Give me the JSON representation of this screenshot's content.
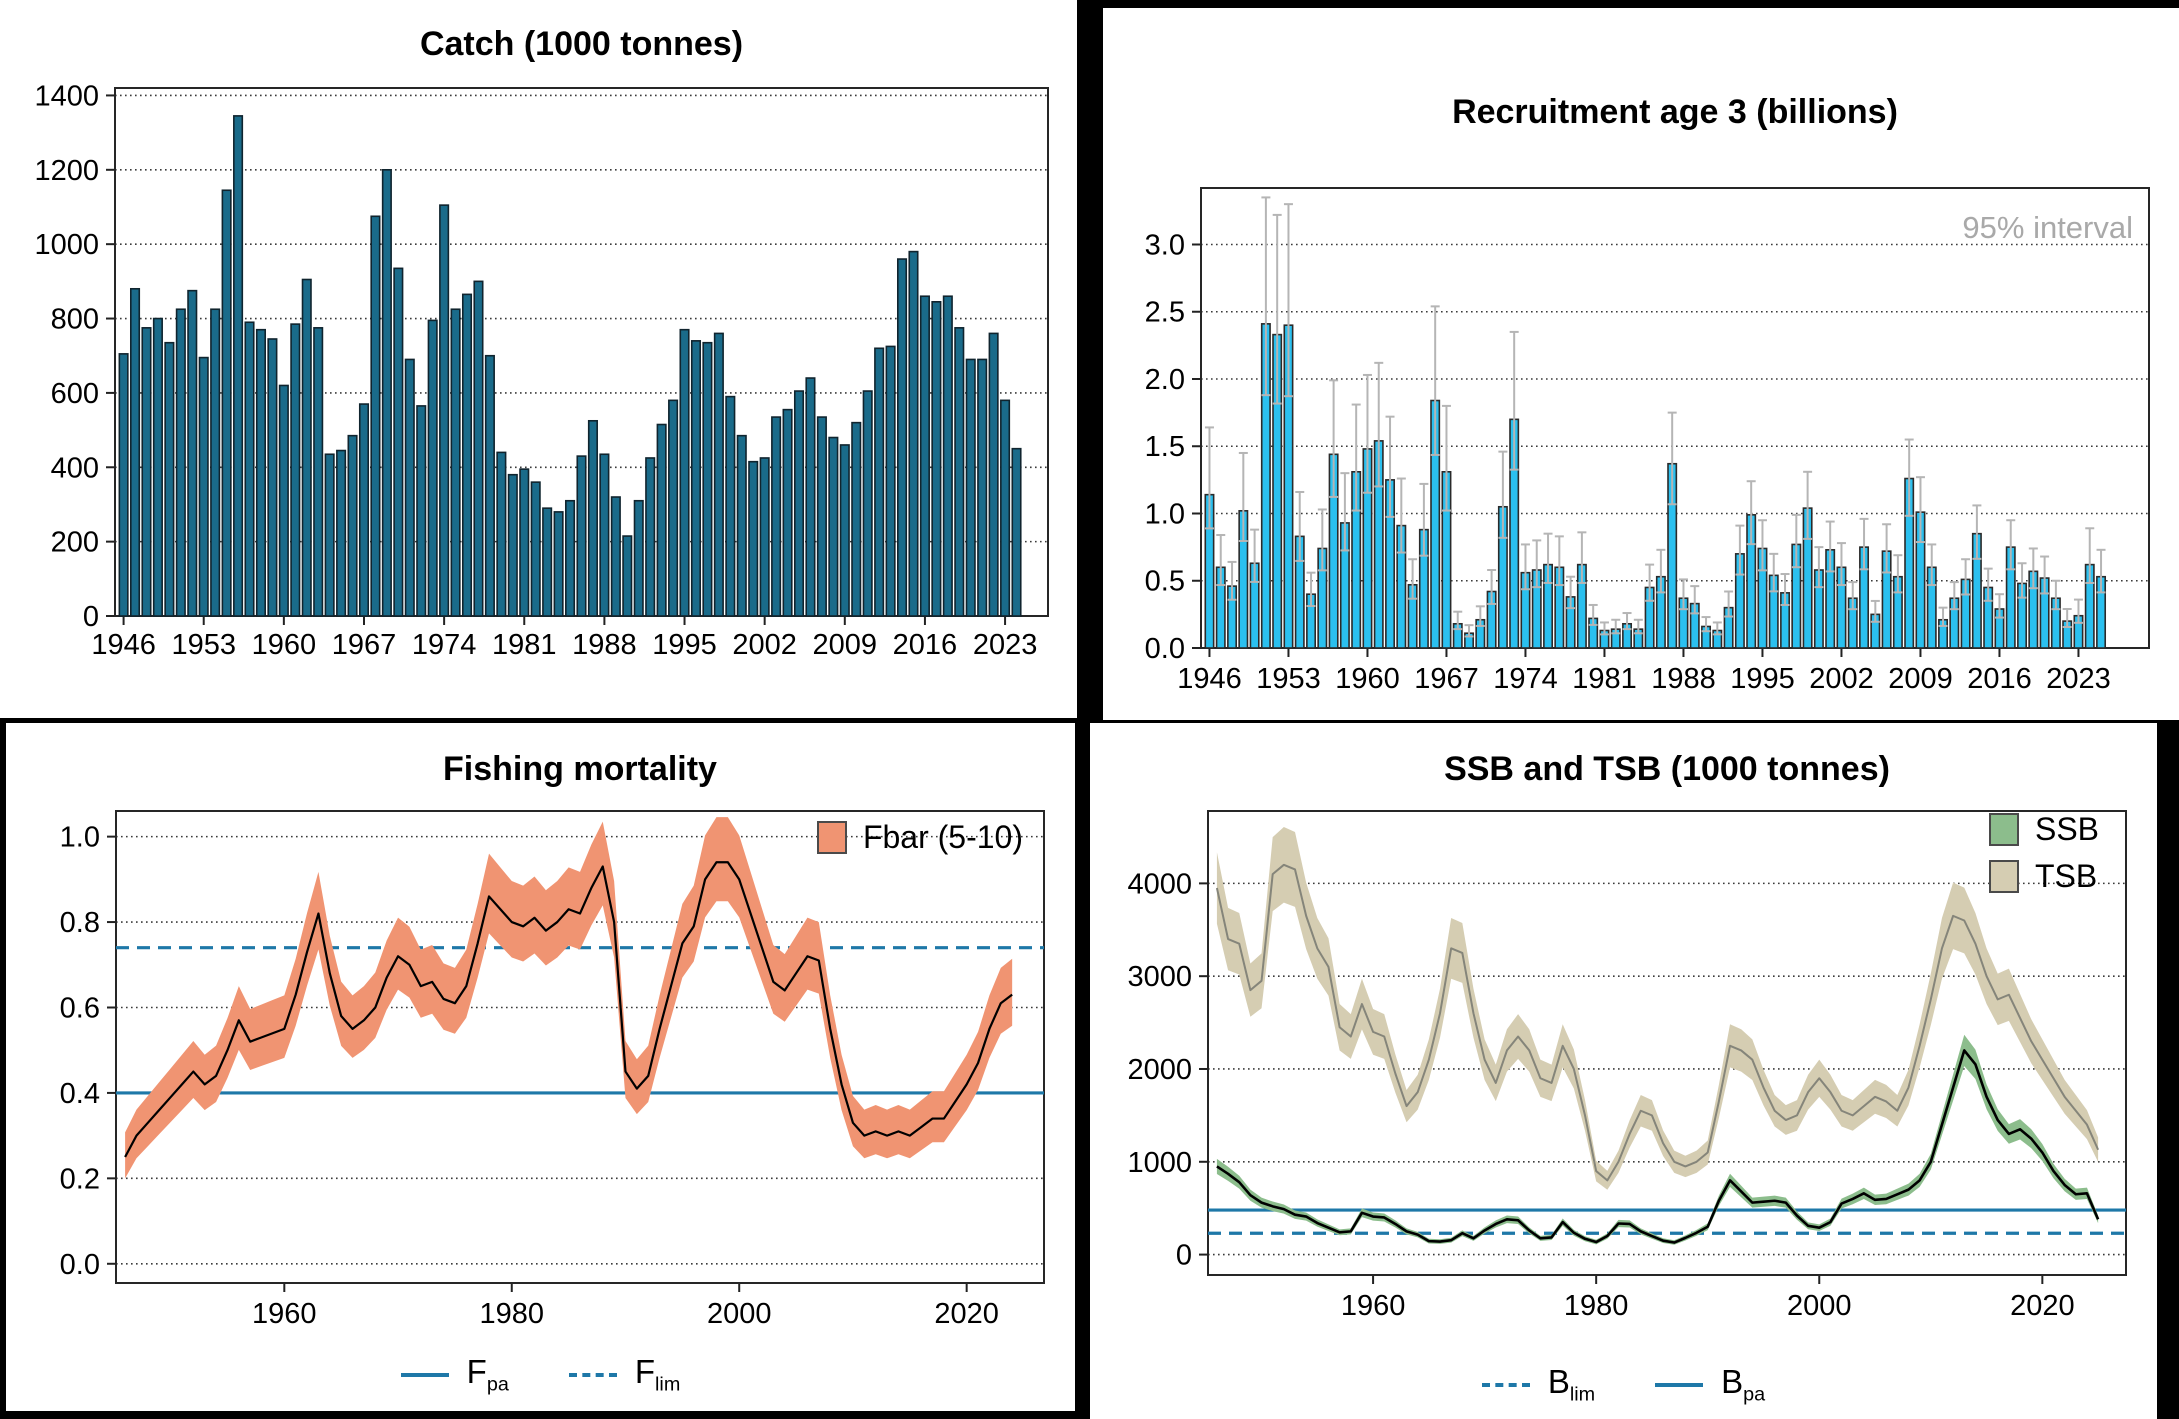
{
  "panels": {
    "catch": {
      "title": "Catch (1000 tonnes)"
    },
    "recruitment": {
      "title": "Recruitment age 3 (billions)",
      "interval_label": "95% interval"
    },
    "fishing_mortality": {
      "title": "Fishing mortality",
      "legend_label": "Fbar (5-10)",
      "ref_legend": {
        "fpa": {
          "main": "F",
          "sub": "pa"
        },
        "flim": {
          "main": "F",
          "sub": "lim"
        }
      }
    },
    "biomass": {
      "title": "SSB and TSB (1000 tonnes)",
      "legend_ssb": "SSB",
      "legend_tsb": "TSB",
      "ref_legend": {
        "blim": {
          "main": "B",
          "sub": "lim"
        },
        "bpa": {
          "main": "B",
          "sub": "pa"
        }
      }
    }
  },
  "colors": {
    "catch_bar": "#1a6b8a",
    "catch_bar_stroke": "#10242e",
    "recruit_bar": "#2bc0ef",
    "recruit_bar_stroke": "#2a2a2a",
    "whisker": "#b5b5b5",
    "f_band": "#f09472",
    "f_line": "#000000",
    "ssb_band": "#8cbd8c",
    "ssb_line": "#000000",
    "tsb_band": "#d5cdb2",
    "tsb_line": "#85857a",
    "ref_blue": "#1e78a8",
    "grid": "#3a3a3a",
    "note_gray": "#a9a9a9"
  },
  "chart_data": [
    {
      "id": "catch",
      "type": "bar",
      "title": "Catch (1000 tonnes)",
      "start_year": 1946,
      "values": [
        705,
        880,
        775,
        800,
        735,
        825,
        875,
        695,
        825,
        1145,
        1345,
        790,
        770,
        745,
        620,
        785,
        905,
        775,
        435,
        445,
        485,
        570,
        1075,
        1200,
        935,
        690,
        565,
        795,
        1105,
        825,
        865,
        900,
        700,
        440,
        380,
        395,
        360,
        290,
        280,
        310,
        430,
        525,
        435,
        320,
        215,
        310,
        425,
        515,
        580,
        770,
        740,
        735,
        760,
        590,
        485,
        415,
        425,
        535,
        555,
        605,
        640,
        535,
        480,
        460,
        520,
        605,
        720,
        725,
        960,
        980,
        860,
        845,
        860,
        775,
        690,
        690,
        760,
        580,
        450
      ],
      "ylim": [
        0,
        1420
      ],
      "yticks": [
        [
          0,
          "0"
        ],
        [
          200,
          "200"
        ],
        [
          400,
          "400"
        ],
        [
          600,
          "600"
        ],
        [
          800,
          "800"
        ],
        [
          1000,
          "1000"
        ],
        [
          1200,
          "1200"
        ],
        [
          1400,
          "1400"
        ]
      ],
      "xticks": [
        [
          1946,
          "1946"
        ],
        [
          1953,
          "1953"
        ],
        [
          1960,
          "1960"
        ],
        [
          1967,
          "1967"
        ],
        [
          1974,
          "1974"
        ],
        [
          1981,
          "1981"
        ],
        [
          1988,
          "1988"
        ],
        [
          1995,
          "1995"
        ],
        [
          2002,
          "2002"
        ],
        [
          2009,
          "2009"
        ],
        [
          2016,
          "2016"
        ],
        [
          2023,
          "2023"
        ]
      ],
      "bar_color": "#1a6b8a",
      "bar_stroke": "#10242e",
      "grid": true
    },
    {
      "id": "recruitment",
      "type": "bar",
      "title": "Recruitment age 3 (billions)",
      "note": "95% interval",
      "start_year": 1946,
      "values": [
        1.14,
        0.6,
        0.46,
        1.02,
        0.63,
        2.41,
        2.33,
        2.4,
        0.83,
        0.4,
        0.74,
        1.44,
        0.93,
        1.31,
        1.48,
        1.54,
        1.25,
        0.91,
        0.47,
        0.88,
        1.84,
        1.31,
        0.18,
        0.11,
        0.21,
        0.42,
        1.05,
        1.7,
        0.56,
        0.58,
        0.62,
        0.6,
        0.38,
        0.62,
        0.22,
        0.13,
        0.14,
        0.18,
        0.14,
        0.45,
        0.53,
        1.37,
        0.37,
        0.33,
        0.16,
        0.13,
        0.3,
        0.7,
        0.99,
        0.74,
        0.54,
        0.41,
        0.77,
        1.04,
        0.58,
        0.73,
        0.6,
        0.37,
        0.75,
        0.25,
        0.72,
        0.53,
        1.26,
        1.01,
        0.6,
        0.21,
        0.37,
        0.51,
        0.85,
        0.45,
        0.29,
        0.75,
        0.48,
        0.57,
        0.52,
        0.37,
        0.2,
        0.24,
        0.62,
        0.53
      ],
      "ci_upper": [
        1.64,
        0.84,
        0.64,
        1.45,
        0.88,
        3.35,
        3.22,
        3.3,
        1.16,
        0.56,
        1.03,
        1.99,
        1.3,
        1.81,
        2.03,
        2.12,
        1.72,
        1.26,
        0.66,
        1.22,
        2.54,
        1.8,
        0.27,
        0.17,
        0.31,
        0.58,
        1.46,
        2.35,
        0.77,
        0.8,
        0.85,
        0.83,
        0.53,
        0.86,
        0.32,
        0.19,
        0.21,
        0.26,
        0.21,
        0.62,
        0.73,
        1.75,
        0.51,
        0.46,
        0.23,
        0.19,
        0.42,
        0.91,
        1.24,
        0.95,
        0.7,
        0.55,
        0.99,
        1.31,
        0.75,
        0.94,
        0.78,
        0.49,
        0.96,
        0.35,
        0.92,
        0.69,
        1.55,
        1.27,
        0.77,
        0.3,
        0.49,
        0.66,
        1.06,
        0.59,
        0.4,
        0.95,
        0.63,
        0.74,
        0.68,
        0.5,
        0.29,
        0.36,
        0.89,
        0.73
      ],
      "ci_lower_factor": 0.78,
      "ylim": [
        0,
        3.42
      ],
      "yticks": [
        [
          0,
          "0.0"
        ],
        [
          0.5,
          "0.5"
        ],
        [
          1.0,
          "1.0"
        ],
        [
          1.5,
          "1.5"
        ],
        [
          2.0,
          "2.0"
        ],
        [
          2.5,
          "2.5"
        ],
        [
          3.0,
          "3.0"
        ]
      ],
      "xticks": [
        [
          1946,
          "1946"
        ],
        [
          1953,
          "1953"
        ],
        [
          1960,
          "1960"
        ],
        [
          1967,
          "1967"
        ],
        [
          1974,
          "1974"
        ],
        [
          1981,
          "1981"
        ],
        [
          1988,
          "1988"
        ],
        [
          1995,
          "1995"
        ],
        [
          2002,
          "2002"
        ],
        [
          2009,
          "2009"
        ],
        [
          2016,
          "2016"
        ],
        [
          2023,
          "2023"
        ]
      ],
      "bar_color": "#2bc0ef",
      "bar_stroke": "#2a2a2a",
      "whisker_color": "#b5b5b5",
      "grid": true
    },
    {
      "id": "fbar",
      "type": "band-line",
      "title": "Fishing mortality",
      "legend": "Fbar (5-10)",
      "xlim": [
        1945.2,
        2026.8
      ],
      "ylim": [
        -0.045,
        1.06
      ],
      "yticks": [
        [
          0,
          "0.0"
        ],
        [
          0.2,
          "0.2"
        ],
        [
          0.4,
          "0.4"
        ],
        [
          0.6,
          "0.6"
        ],
        [
          0.8,
          "0.8"
        ],
        [
          1.0,
          "1.0"
        ]
      ],
      "xticks": [
        [
          1960,
          "1960"
        ],
        [
          1980,
          "1980"
        ],
        [
          2000,
          "2000"
        ],
        [
          2020,
          "2020"
        ]
      ],
      "series": [
        {
          "name": "Fbar (5-10)",
          "start_year": 1946,
          "values": [
            0.25,
            0.3,
            0.33,
            0.36,
            0.39,
            0.42,
            0.45,
            0.42,
            0.44,
            0.5,
            0.57,
            0.52,
            0.53,
            0.54,
            0.55,
            0.63,
            0.73,
            0.82,
            0.68,
            0.58,
            0.55,
            0.57,
            0.6,
            0.67,
            0.72,
            0.7,
            0.65,
            0.66,
            0.62,
            0.61,
            0.65,
            0.75,
            0.86,
            0.83,
            0.8,
            0.79,
            0.81,
            0.78,
            0.8,
            0.83,
            0.82,
            0.88,
            0.93,
            0.8,
            0.45,
            0.41,
            0.44,
            0.55,
            0.65,
            0.75,
            0.79,
            0.9,
            0.94,
            0.94,
            0.9,
            0.82,
            0.74,
            0.66,
            0.64,
            0.68,
            0.72,
            0.71,
            0.55,
            0.42,
            0.33,
            0.3,
            0.31,
            0.3,
            0.31,
            0.3,
            0.32,
            0.34,
            0.34,
            0.38,
            0.42,
            0.47,
            0.55,
            0.61,
            0.63
          ],
          "band": {
            "lower_abs": 0.035,
            "lower_rel": 0.06,
            "upper_abs": 0.04,
            "upper_rel": 0.07
          },
          "band_color": "#f09472",
          "line_color": "#000000",
          "line_width": 2.2
        }
      ],
      "ref_lines": [
        {
          "name": "F_pa",
          "value": 0.4,
          "style": "solid"
        },
        {
          "name": "F_lim",
          "value": 0.74,
          "style": "dashed"
        }
      ]
    },
    {
      "id": "biomass",
      "type": "band-line",
      "title": "SSB and TSB (1000 tonnes)",
      "xlim": [
        1945.2,
        2027.5
      ],
      "ylim": [
        -220,
        4780
      ],
      "yticks": [
        [
          0,
          "0"
        ],
        [
          1000,
          "1000"
        ],
        [
          2000,
          "2000"
        ],
        [
          3000,
          "3000"
        ],
        [
          4000,
          "4000"
        ]
      ],
      "xticks": [
        [
          1960,
          "1960"
        ],
        [
          1980,
          "1980"
        ],
        [
          2000,
          "2000"
        ],
        [
          2020,
          "2020"
        ]
      ],
      "series": [
        {
          "name": "TSB",
          "start_year": 1946,
          "values": [
            3950,
            3400,
            3350,
            2850,
            2950,
            4100,
            4200,
            4150,
            3650,
            3300,
            3100,
            2450,
            2350,
            2700,
            2400,
            2350,
            1950,
            1600,
            1750,
            2100,
            2600,
            3300,
            3250,
            2600,
            2100,
            1850,
            2200,
            2350,
            2200,
            1900,
            1850,
            2250,
            2000,
            1500,
            900,
            800,
            1000,
            1300,
            1550,
            1500,
            1200,
            1000,
            950,
            1000,
            1100,
            1650,
            2250,
            2200,
            2100,
            1800,
            1550,
            1450,
            1500,
            1750,
            1900,
            1750,
            1550,
            1500,
            1600,
            1700,
            1650,
            1550,
            1800,
            2250,
            2750,
            3300,
            3650,
            3600,
            3350,
            3000,
            2750,
            2800,
            2550,
            2300,
            2100,
            1900,
            1700,
            1550,
            1400,
            1130
          ],
          "band": {
            "lower_abs": 30,
            "lower_rel": 0.09,
            "upper_abs": 30,
            "upper_rel": 0.09
          },
          "band_color": "#d5cdb2",
          "line_color": "#85857a",
          "line_width": 2
        },
        {
          "name": "SSB",
          "start_year": 1946,
          "values": [
            950,
            870,
            780,
            640,
            560,
            520,
            490,
            430,
            410,
            340,
            290,
            240,
            250,
            450,
            410,
            400,
            330,
            250,
            215,
            145,
            140,
            155,
            230,
            175,
            260,
            330,
            380,
            370,
            260,
            175,
            185,
            350,
            235,
            170,
            135,
            200,
            335,
            330,
            250,
            200,
            150,
            130,
            180,
            235,
            300,
            580,
            800,
            680,
            560,
            570,
            580,
            560,
            420,
            310,
            290,
            350,
            550,
            600,
            660,
            590,
            600,
            650,
            700,
            800,
            1000,
            1400,
            1800,
            2200,
            2050,
            1700,
            1450,
            1300,
            1350,
            1250,
            1100,
            900,
            750,
            650,
            660,
            380
          ],
          "band": {
            "lower_abs": 15,
            "lower_rel": 0.07,
            "upper_abs": 15,
            "upper_rel": 0.07
          },
          "band_color": "#8cbd8c",
          "line_color": "#000000",
          "line_width": 2.6
        }
      ],
      "ref_lines": [
        {
          "name": "B_pa",
          "value": 480,
          "style": "solid"
        },
        {
          "name": "B_lim",
          "value": 230,
          "style": "dashed"
        }
      ]
    }
  ]
}
